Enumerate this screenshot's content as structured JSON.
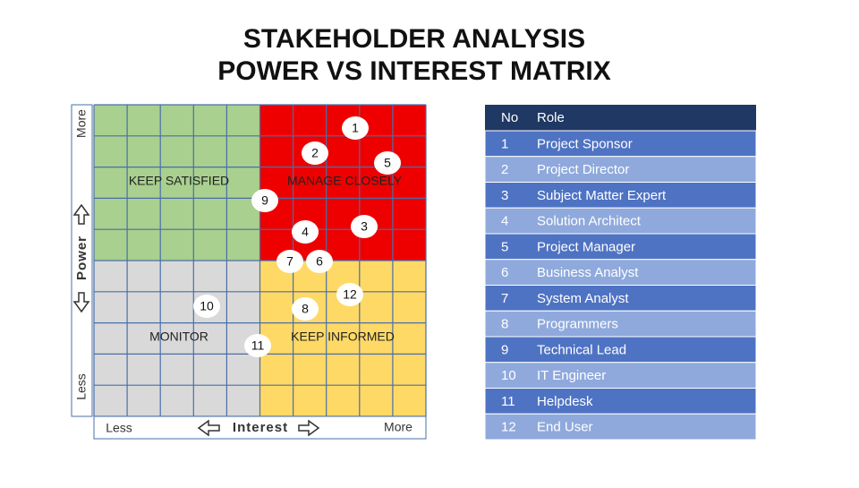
{
  "header": {
    "title_line1": "STAKEHOLDER ANALYSIS",
    "title_line2": "POWER VS INTEREST MATRIX"
  },
  "matrix": {
    "quadrants": [
      "KEEP SATISFIED",
      "MANAGE CLOSELY",
      "MONITOR",
      "KEEP INFORMED"
    ],
    "markers": [
      "1",
      "2",
      "5",
      "9",
      "3",
      "4",
      "7",
      "6",
      "10",
      "8",
      "12",
      "11"
    ],
    "y_axis": {
      "high": "More",
      "title": "Power",
      "low": "Less"
    },
    "x_axis": {
      "low": "Less",
      "title": "Interest",
      "high": "More"
    }
  },
  "table": {
    "columns": [
      "No",
      "Role"
    ],
    "rows": [
      [
        "1",
        "Project Sponsor"
      ],
      [
        "2",
        "Project Director"
      ],
      [
        "3",
        "Subject Matter Expert"
      ],
      [
        "4",
        "Solution Architect"
      ],
      [
        "5",
        "Project Manager"
      ],
      [
        "6",
        "Business Analyst"
      ],
      [
        "7",
        "System Analyst"
      ],
      [
        "8",
        "Programmers"
      ],
      [
        "9",
        "Technical Lead"
      ],
      [
        "10",
        "IT Engineer"
      ],
      [
        "11",
        "Helpdesk"
      ],
      [
        "12",
        "End User"
      ]
    ]
  }
}
